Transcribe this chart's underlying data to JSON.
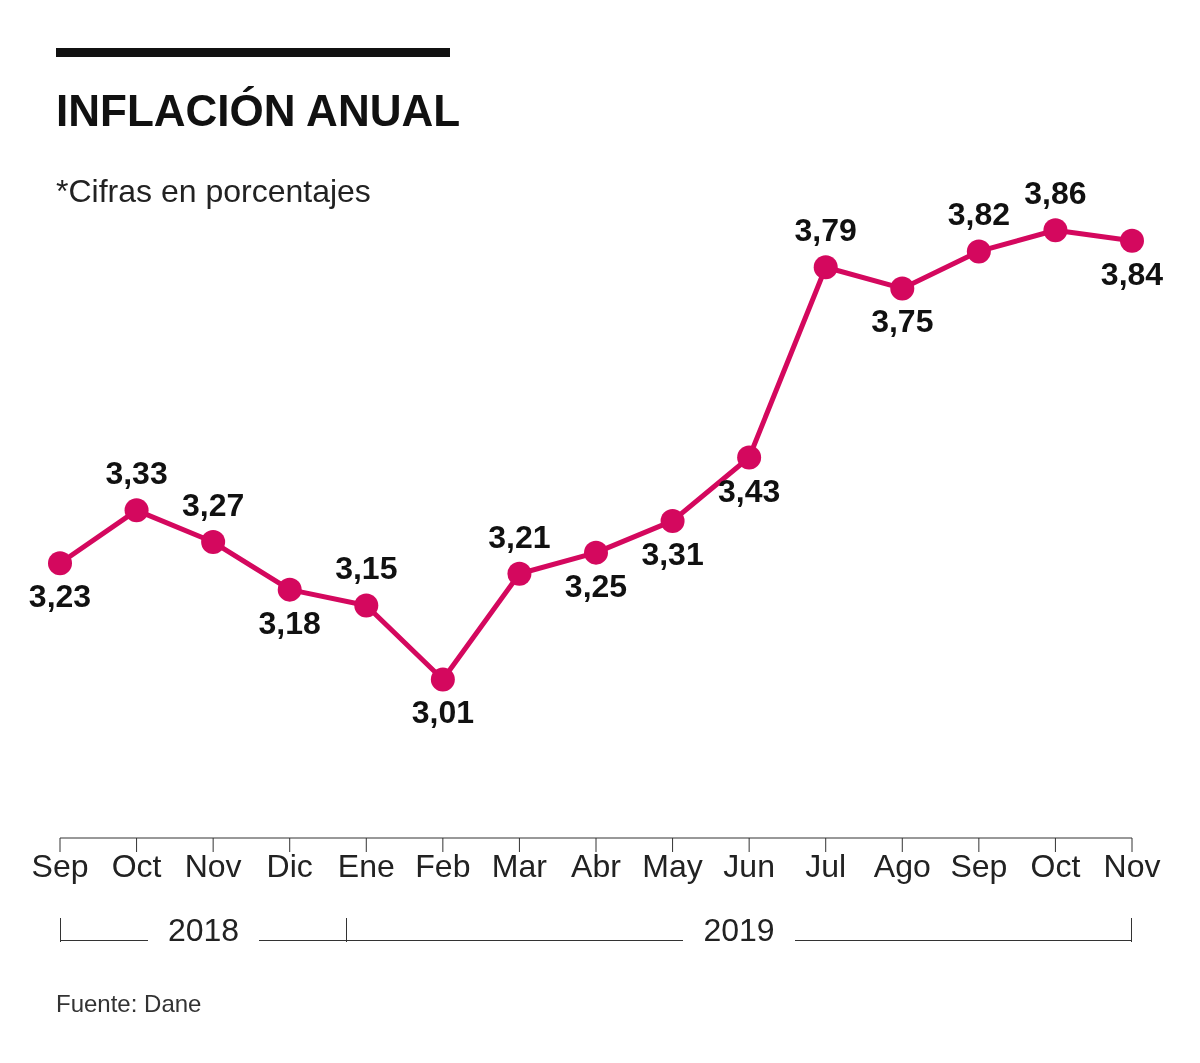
{
  "chart_data": {
    "type": "line",
    "title": "INFLACIÓN ANUAL",
    "categories": [
      "Sep",
      "Oct",
      "Nov",
      "Dic",
      "Ene",
      "Feb",
      "Mar",
      "Abr",
      "May",
      "Jun",
      "Jul",
      "Ago",
      "Sep",
      "Oct",
      "Nov"
    ],
    "series": [
      {
        "color": "#d4085e",
        "values": [
          3.23,
          3.33,
          3.27,
          3.18,
          3.15,
          3.01,
          3.21,
          3.25,
          3.31,
          3.43,
          3.79,
          3.75,
          3.82,
          3.86,
          3.84
        ],
        "value_labels": [
          "3,23",
          "3,33",
          "3,27",
          "3,18",
          "3,15",
          "3,01",
          "3,21",
          "3,25",
          "3,31",
          "3,43",
          "3,79",
          "3,75",
          "3,82",
          "3,86",
          "3,84"
        ]
      }
    ],
    "annotations": [
      "*Cifras en porcentajes",
      "2018",
      "2019",
      "Fuente: Dane"
    ],
    "marker": "circle",
    "line_style": "solid"
  }
}
